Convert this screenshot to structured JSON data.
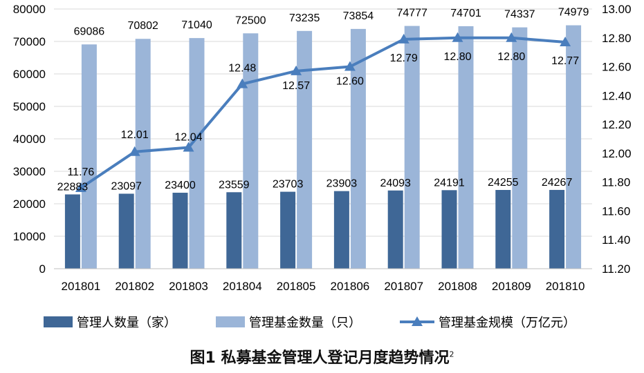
{
  "chart_data": {
    "type": "bar",
    "title": "图1 私募基金管理人登记月度趋势情况",
    "title_note": "2",
    "categories": [
      "201801",
      "201802",
      "201803",
      "201804",
      "201805",
      "201806",
      "201807",
      "201808",
      "201809",
      "201810"
    ],
    "series": [
      {
        "name": "管理人数量（家）",
        "type": "bar",
        "axis": "left",
        "color": "#3f6796",
        "values": [
          22883,
          23097,
          23400,
          23559,
          23703,
          23903,
          24093,
          24191,
          24255,
          24267
        ]
      },
      {
        "name": "管理基金数量（只）",
        "type": "bar",
        "axis": "left",
        "color": "#9bb5d8",
        "values": [
          69086,
          70802,
          71040,
          72500,
          73235,
          73854,
          74777,
          74701,
          74337,
          74979
        ]
      },
      {
        "name": "管理基金规模（万亿元）",
        "type": "line",
        "axis": "right",
        "color": "#4a7ebd",
        "marker": "triangle",
        "values": [
          11.76,
          12.01,
          12.04,
          12.48,
          12.57,
          12.6,
          12.79,
          12.8,
          12.8,
          12.77
        ],
        "labels": [
          "11.76",
          "12.01",
          "12.04",
          "12.48",
          "12.57",
          "12.60",
          "12.79",
          "12.80",
          "12.80",
          "12.77"
        ]
      }
    ],
    "y_left": {
      "min": 0,
      "max": 80000,
      "step": 10000,
      "ticks": [
        "0",
        "10000",
        "20000",
        "30000",
        "40000",
        "50000",
        "60000",
        "70000",
        "80000"
      ]
    },
    "y_right": {
      "min": 11.2,
      "max": 13.0,
      "step": 0.2,
      "ticks": [
        "11.20",
        "11.40",
        "11.60",
        "11.80",
        "12.00",
        "12.20",
        "12.40",
        "12.60",
        "12.80",
        "13.00"
      ]
    },
    "grid": true,
    "legend_position": "bottom"
  }
}
